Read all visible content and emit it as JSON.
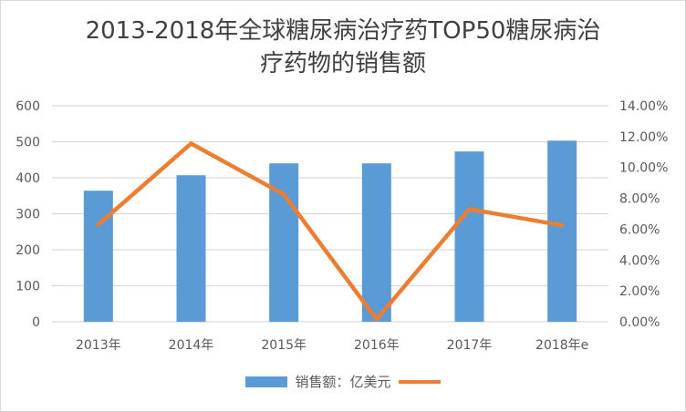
{
  "chart_data": {
    "type": "bar+line",
    "title": "2013-2018年全球糖尿病治疗药TOP50糖尿病治疗药物的销售额",
    "title_lines": [
      "2013-2018年全球糖尿病治疗药TOP50糖尿病治",
      "疗药物的销售额"
    ],
    "categories": [
      "2013年",
      "2014年",
      "2015年",
      "2016年",
      "2017年",
      "2018年e"
    ],
    "series": [
      {
        "name": "销售额：亿美元",
        "type": "bar",
        "axis": "left",
        "color": "#5b9bd5",
        "values": [
          364,
          407,
          440,
          440,
          473,
          503
        ]
      },
      {
        "name": "",
        "type": "line",
        "axis": "right",
        "color": "#ed7d31",
        "values": [
          6.3,
          11.55,
          8.25,
          0.15,
          7.3,
          6.25
        ]
      }
    ],
    "y_left": {
      "range": [
        0,
        600
      ],
      "ticks": [
        "0",
        "100",
        "200",
        "300",
        "400",
        "500",
        "600"
      ]
    },
    "y_right": {
      "range": [
        0,
        14
      ],
      "ticks": [
        "0.00%",
        "2.00%",
        "4.00%",
        "6.00%",
        "8.00%",
        "10.00%",
        "12.00%",
        "14.00%"
      ]
    },
    "grid": true,
    "legend": "bottom"
  }
}
